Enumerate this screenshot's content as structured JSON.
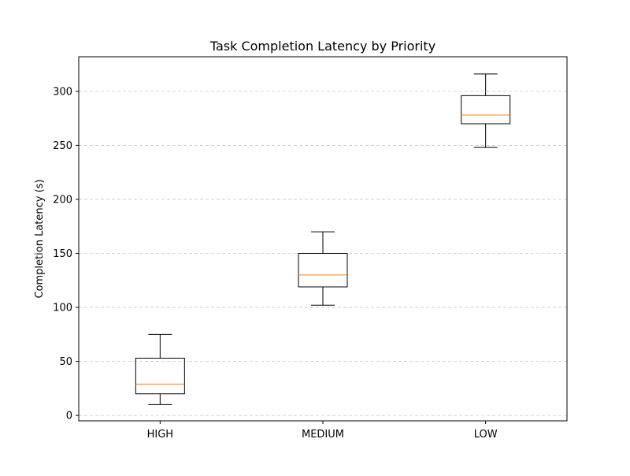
{
  "chart_data": {
    "type": "box",
    "title": "Task Completion Latency by Priority",
    "xlabel": "",
    "ylabel": "Completion Latency (s)",
    "ylim": [
      -5,
      332
    ],
    "yticks": [
      0,
      50,
      100,
      150,
      200,
      250,
      300
    ],
    "grid": {
      "y": true,
      "x": false,
      "style": "dashed"
    },
    "categories": [
      "HIGH",
      "MEDIUM",
      "LOW"
    ],
    "boxes": [
      {
        "category": "HIGH",
        "whisker_low": 10,
        "q1": 20,
        "median": 29,
        "q3": 53,
        "whisker_high": 75
      },
      {
        "category": "MEDIUM",
        "whisker_low": 102,
        "q1": 119,
        "median": 130,
        "q3": 150,
        "whisker_high": 170
      },
      {
        "category": "LOW",
        "whisker_low": 248,
        "q1": 270,
        "median": 278,
        "q3": 296,
        "whisker_high": 316
      }
    ],
    "colors": {
      "box": "#000000",
      "median": "#ff7f0e",
      "grid": "#b0b0b0"
    }
  }
}
